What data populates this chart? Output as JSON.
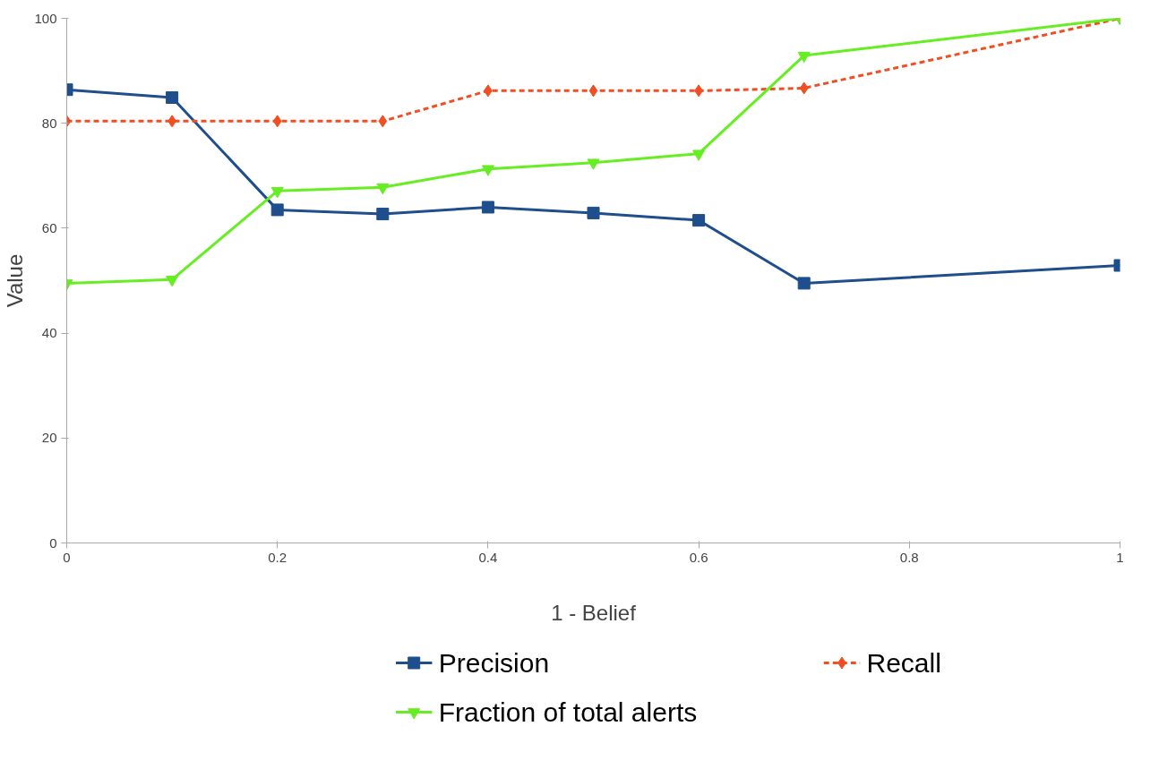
{
  "chart_data": {
    "type": "line",
    "xlabel": "1 - Belief",
    "ylabel": "Value",
    "x": [
      0,
      0.1,
      0.2,
      0.3,
      0.4,
      0.5,
      0.6,
      0.7,
      1.0
    ],
    "xlim": [
      0,
      1
    ],
    "xticks": [
      0,
      0.2,
      0.4,
      0.6,
      0.8,
      1
    ],
    "ylim": [
      0,
      100
    ],
    "yticks": [
      0,
      20,
      40,
      60,
      80,
      100
    ],
    "grid": false,
    "legend": "bottom",
    "series": [
      {
        "name": "Precision",
        "color": "#1f4e8c",
        "marker": "square",
        "line_style": "solid",
        "values": [
          86.4,
          84.9,
          63.5,
          62.7,
          64.0,
          62.9,
          61.5,
          49.5,
          52.9
        ]
      },
      {
        "name": "Recall",
        "color": "#f04e23",
        "marker": "diamond",
        "line_style": "dashed",
        "values": [
          80.4,
          80.4,
          80.4,
          80.4,
          86.2,
          86.2,
          86.2,
          86.7,
          100
        ]
      },
      {
        "name": "Fraction of total alerts",
        "color": "#66ee22",
        "marker": "triangle",
        "line_style": "solid",
        "values": [
          49.5,
          50.2,
          67.1,
          67.8,
          71.3,
          72.5,
          74.2,
          92.9,
          100
        ]
      }
    ]
  }
}
